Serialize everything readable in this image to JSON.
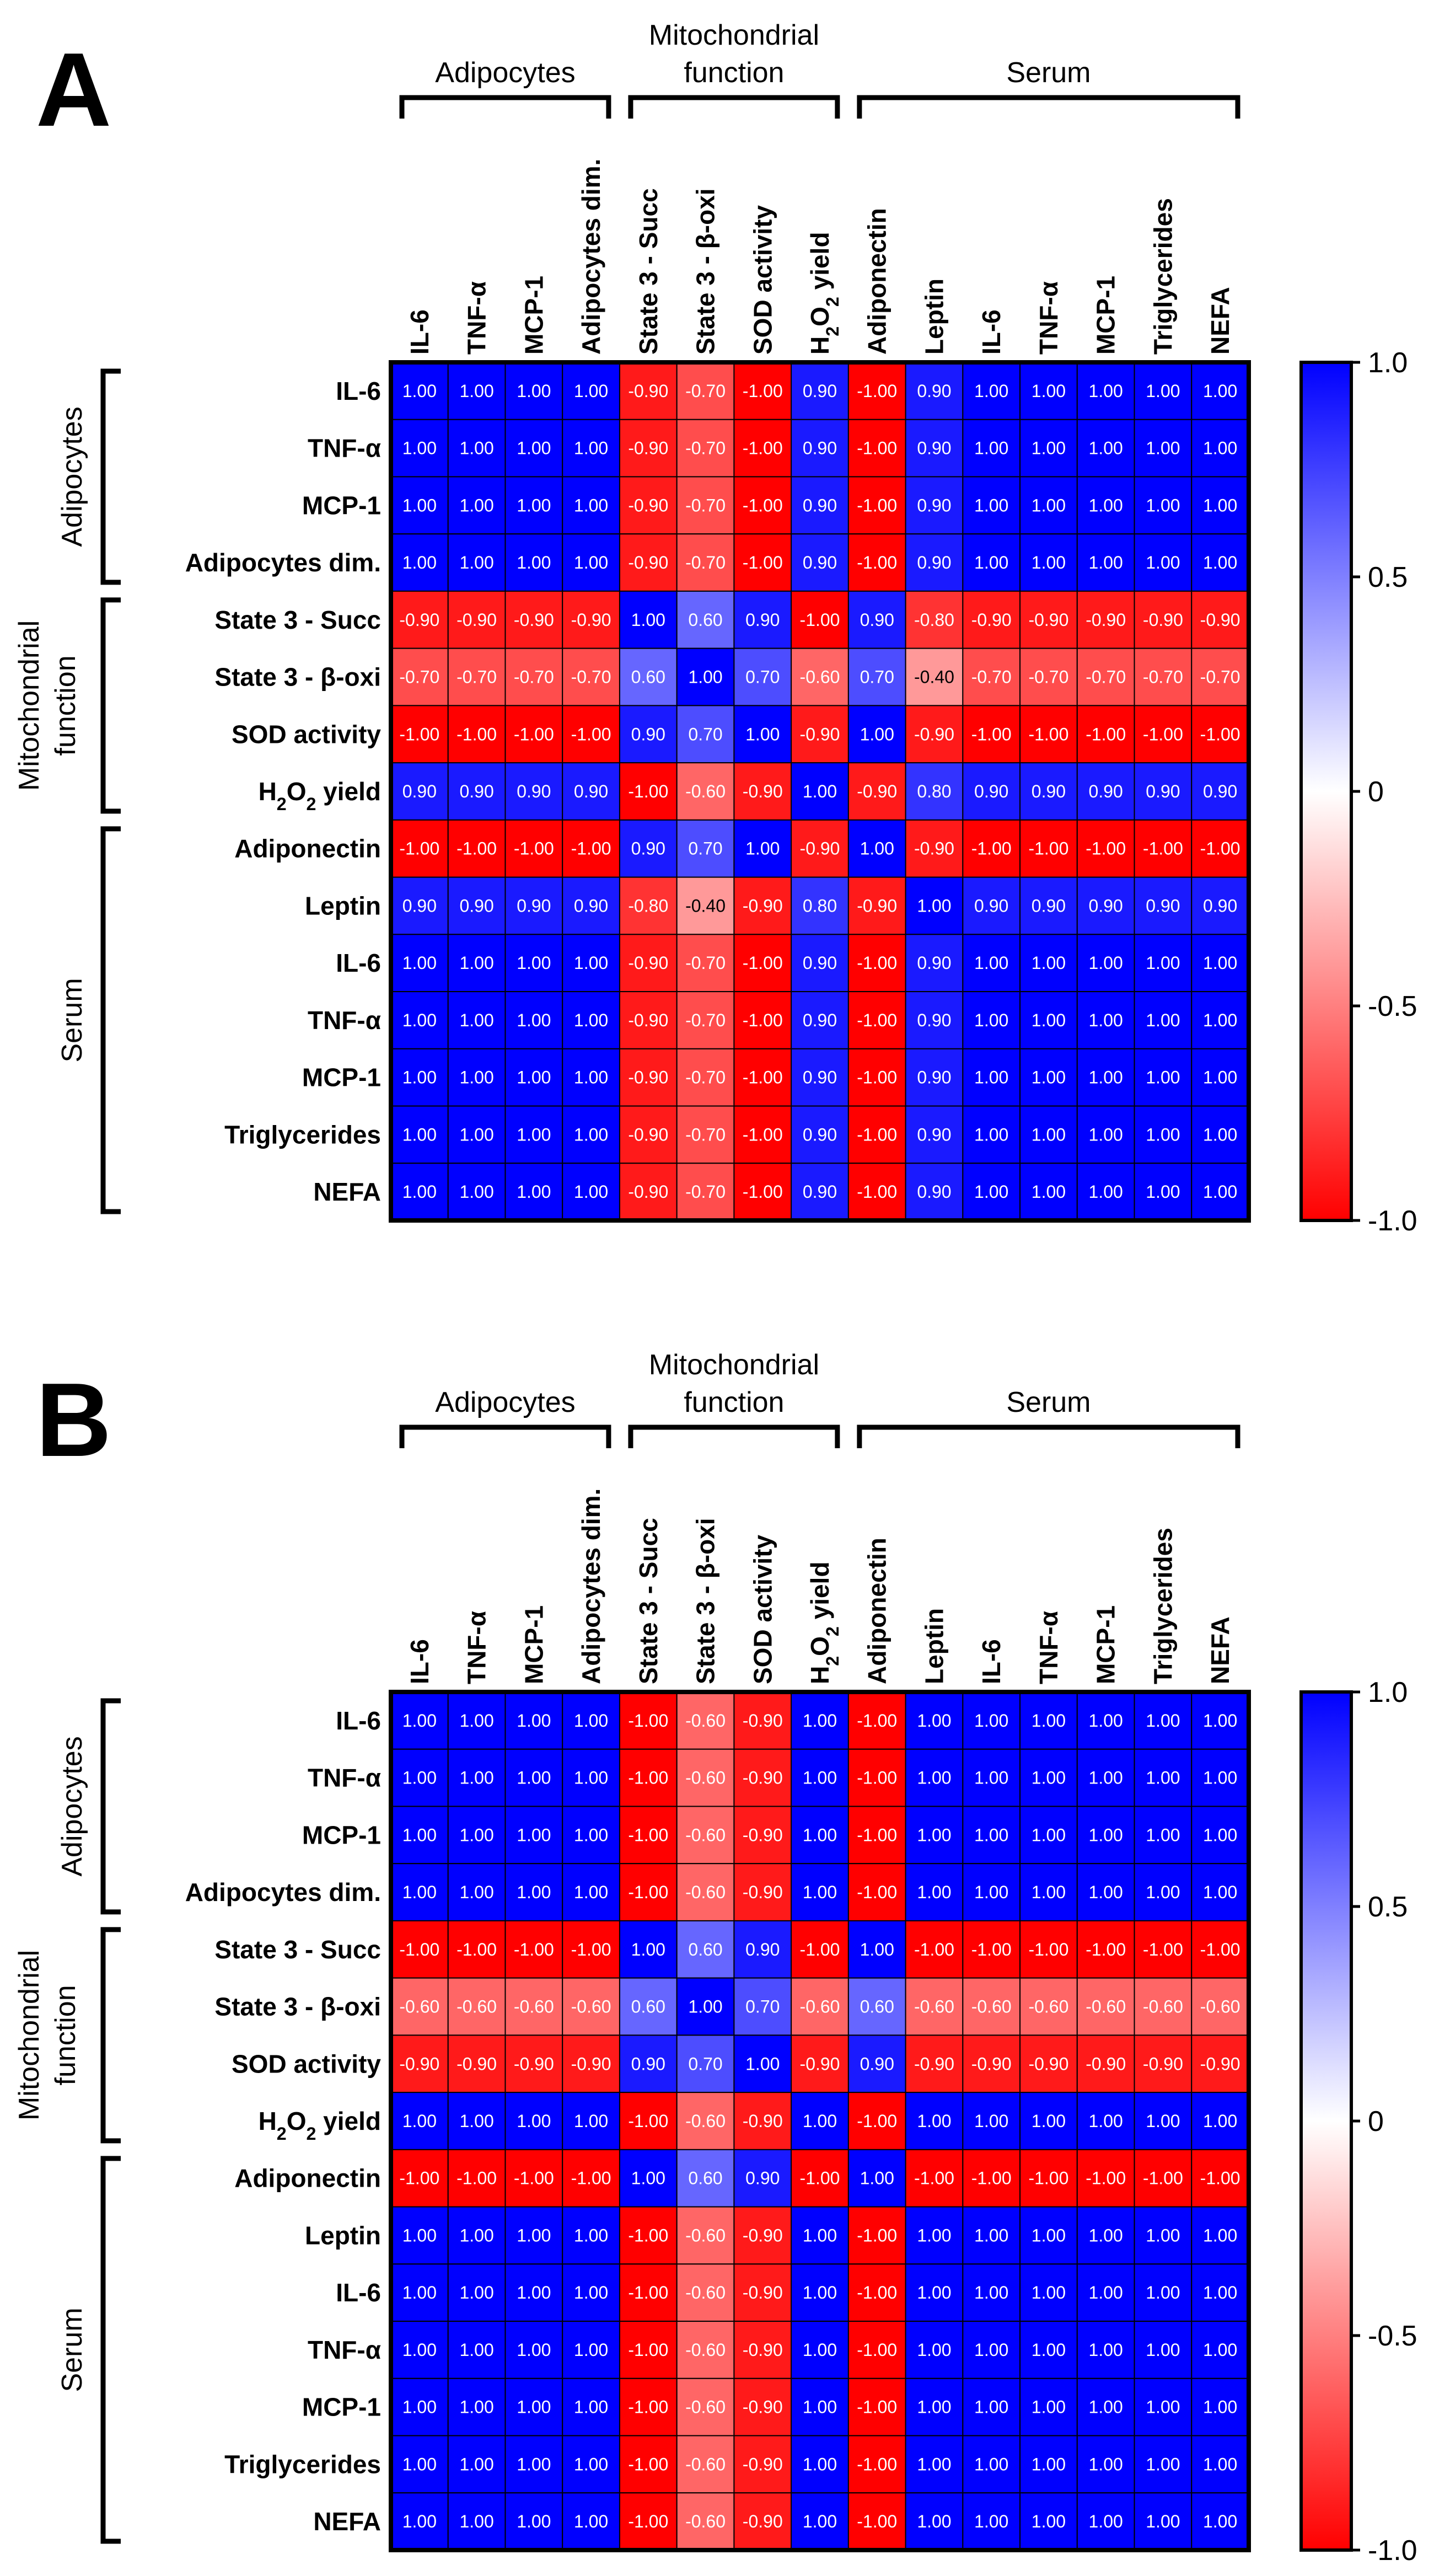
{
  "chart_data": [
    {
      "type": "heatmap",
      "panel": "A",
      "col_groups": [
        {
          "label_lines": [
            "Adipocytes"
          ],
          "start": 0,
          "end": 3
        },
        {
          "label_lines": [
            "Mitochondrial",
            "function"
          ],
          "start": 4,
          "end": 7
        },
        {
          "label_lines": [
            "Serum"
          ],
          "start": 8,
          "end": 14
        }
      ],
      "row_groups": [
        {
          "label_lines": [
            "Adipocytes"
          ],
          "start": 0,
          "end": 3
        },
        {
          "label_lines": [
            "Mitochondrial",
            "function"
          ],
          "start": 4,
          "end": 7
        },
        {
          "label_lines": [
            "Serum"
          ],
          "start": 8,
          "end": 14
        }
      ],
      "x_labels": [
        "IL-6",
        "TNF-α",
        "MCP-1",
        "Adipocytes dim.",
        "State 3 - Succ",
        "State 3 - β-oxi",
        "SOD activity",
        "H2O2 yield",
        "Adiponectin",
        "Leptin",
        "IL-6",
        "TNF-α",
        "MCP-1",
        "Triglycerides",
        "NEFA"
      ],
      "y_labels": [
        "IL-6",
        "TNF-α",
        "MCP-1",
        "Adipocytes dim.",
        "State 3 - Succ",
        "State 3 - β-oxi",
        "SOD activity",
        "H2O2 yield",
        "Adiponectin",
        "Leptin",
        "IL-6",
        "TNF-α",
        "MCP-1",
        "Triglycerides",
        "NEFA"
      ],
      "values": [
        [
          1.0,
          1.0,
          1.0,
          1.0,
          -0.9,
          -0.7,
          -1.0,
          0.9,
          -1.0,
          0.9,
          1.0,
          1.0,
          1.0,
          1.0,
          1.0
        ],
        [
          1.0,
          1.0,
          1.0,
          1.0,
          -0.9,
          -0.7,
          -1.0,
          0.9,
          -1.0,
          0.9,
          1.0,
          1.0,
          1.0,
          1.0,
          1.0
        ],
        [
          1.0,
          1.0,
          1.0,
          1.0,
          -0.9,
          -0.7,
          -1.0,
          0.9,
          -1.0,
          0.9,
          1.0,
          1.0,
          1.0,
          1.0,
          1.0
        ],
        [
          1.0,
          1.0,
          1.0,
          1.0,
          -0.9,
          -0.7,
          -1.0,
          0.9,
          -1.0,
          0.9,
          1.0,
          1.0,
          1.0,
          1.0,
          1.0
        ],
        [
          -0.9,
          -0.9,
          -0.9,
          -0.9,
          1.0,
          0.6,
          0.9,
          -1.0,
          0.9,
          -0.8,
          -0.9,
          -0.9,
          -0.9,
          -0.9,
          -0.9
        ],
        [
          -0.7,
          -0.7,
          -0.7,
          -0.7,
          0.6,
          1.0,
          0.7,
          -0.6,
          0.7,
          -0.4,
          -0.7,
          -0.7,
          -0.7,
          -0.7,
          -0.7
        ],
        [
          -1.0,
          -1.0,
          -1.0,
          -1.0,
          0.9,
          0.7,
          1.0,
          -0.9,
          1.0,
          -0.9,
          -1.0,
          -1.0,
          -1.0,
          -1.0,
          -1.0
        ],
        [
          0.9,
          0.9,
          0.9,
          0.9,
          -1.0,
          -0.6,
          -0.9,
          1.0,
          -0.9,
          0.8,
          0.9,
          0.9,
          0.9,
          0.9,
          0.9
        ],
        [
          -1.0,
          -1.0,
          -1.0,
          -1.0,
          0.9,
          0.7,
          1.0,
          -0.9,
          1.0,
          -0.9,
          -1.0,
          -1.0,
          -1.0,
          -1.0,
          -1.0
        ],
        [
          0.9,
          0.9,
          0.9,
          0.9,
          -0.8,
          -0.4,
          -0.9,
          0.8,
          -0.9,
          1.0,
          0.9,
          0.9,
          0.9,
          0.9,
          0.9
        ],
        [
          1.0,
          1.0,
          1.0,
          1.0,
          -0.9,
          -0.7,
          -1.0,
          0.9,
          -1.0,
          0.9,
          1.0,
          1.0,
          1.0,
          1.0,
          1.0
        ],
        [
          1.0,
          1.0,
          1.0,
          1.0,
          -0.9,
          -0.7,
          -1.0,
          0.9,
          -1.0,
          0.9,
          1.0,
          1.0,
          1.0,
          1.0,
          1.0
        ],
        [
          1.0,
          1.0,
          1.0,
          1.0,
          -0.9,
          -0.7,
          -1.0,
          0.9,
          -1.0,
          0.9,
          1.0,
          1.0,
          1.0,
          1.0,
          1.0
        ],
        [
          1.0,
          1.0,
          1.0,
          1.0,
          -0.9,
          -0.7,
          -1.0,
          0.9,
          -1.0,
          0.9,
          1.0,
          1.0,
          1.0,
          1.0,
          1.0
        ],
        [
          1.0,
          1.0,
          1.0,
          1.0,
          -0.9,
          -0.7,
          -1.0,
          0.9,
          -1.0,
          0.9,
          1.0,
          1.0,
          1.0,
          1.0,
          1.0
        ]
      ],
      "color_scale": {
        "min": -1.0,
        "max": 1.0,
        "min_color": "#ff0000",
        "mid_color": "#ffffff",
        "max_color": "#0000ff",
        "tick_labels": [
          "1.0",
          "0.5",
          "0",
          "-0.5",
          "-1.0"
        ]
      }
    },
    {
      "type": "heatmap",
      "panel": "B",
      "col_groups": [
        {
          "label_lines": [
            "Adipocytes"
          ],
          "start": 0,
          "end": 3
        },
        {
          "label_lines": [
            "Mitochondrial",
            "function"
          ],
          "start": 4,
          "end": 7
        },
        {
          "label_lines": [
            "Serum"
          ],
          "start": 8,
          "end": 14
        }
      ],
      "row_groups": [
        {
          "label_lines": [
            "Adipocytes"
          ],
          "start": 0,
          "end": 3
        },
        {
          "label_lines": [
            "Mitochondrial",
            "function"
          ],
          "start": 4,
          "end": 7
        },
        {
          "label_lines": [
            "Serum"
          ],
          "start": 8,
          "end": 14
        }
      ],
      "x_labels": [
        "IL-6",
        "TNF-α",
        "MCP-1",
        "Adipocytes dim.",
        "State 3 - Succ",
        "State 3 - β-oxi",
        "SOD activity",
        "H2O2 yield",
        "Adiponectin",
        "Leptin",
        "IL-6",
        "TNF-α",
        "MCP-1",
        "Triglycerides",
        "NEFA"
      ],
      "y_labels": [
        "IL-6",
        "TNF-α",
        "MCP-1",
        "Adipocytes dim.",
        "State 3 - Succ",
        "State 3 - β-oxi",
        "SOD activity",
        "H2O2 yield",
        "Adiponectin",
        "Leptin",
        "IL-6",
        "TNF-α",
        "MCP-1",
        "Triglycerides",
        "NEFA"
      ],
      "values": [
        [
          1.0,
          1.0,
          1.0,
          1.0,
          -1.0,
          -0.6,
          -0.9,
          1.0,
          -1.0,
          1.0,
          1.0,
          1.0,
          1.0,
          1.0,
          1.0
        ],
        [
          1.0,
          1.0,
          1.0,
          1.0,
          -1.0,
          -0.6,
          -0.9,
          1.0,
          -1.0,
          1.0,
          1.0,
          1.0,
          1.0,
          1.0,
          1.0
        ],
        [
          1.0,
          1.0,
          1.0,
          1.0,
          -1.0,
          -0.6,
          -0.9,
          1.0,
          -1.0,
          1.0,
          1.0,
          1.0,
          1.0,
          1.0,
          1.0
        ],
        [
          1.0,
          1.0,
          1.0,
          1.0,
          -1.0,
          -0.6,
          -0.9,
          1.0,
          -1.0,
          1.0,
          1.0,
          1.0,
          1.0,
          1.0,
          1.0
        ],
        [
          -1.0,
          -1.0,
          -1.0,
          -1.0,
          1.0,
          0.6,
          0.9,
          -1.0,
          1.0,
          -1.0,
          -1.0,
          -1.0,
          -1.0,
          -1.0,
          -1.0
        ],
        [
          -0.6,
          -0.6,
          -0.6,
          -0.6,
          0.6,
          1.0,
          0.7,
          -0.6,
          0.6,
          -0.6,
          -0.6,
          -0.6,
          -0.6,
          -0.6,
          -0.6
        ],
        [
          -0.9,
          -0.9,
          -0.9,
          -0.9,
          0.9,
          0.7,
          1.0,
          -0.9,
          0.9,
          -0.9,
          -0.9,
          -0.9,
          -0.9,
          -0.9,
          -0.9
        ],
        [
          1.0,
          1.0,
          1.0,
          1.0,
          -1.0,
          -0.6,
          -0.9,
          1.0,
          -1.0,
          1.0,
          1.0,
          1.0,
          1.0,
          1.0,
          1.0
        ],
        [
          -1.0,
          -1.0,
          -1.0,
          -1.0,
          1.0,
          0.6,
          0.9,
          -1.0,
          1.0,
          -1.0,
          -1.0,
          -1.0,
          -1.0,
          -1.0,
          -1.0
        ],
        [
          1.0,
          1.0,
          1.0,
          1.0,
          -1.0,
          -0.6,
          -0.9,
          1.0,
          -1.0,
          1.0,
          1.0,
          1.0,
          1.0,
          1.0,
          1.0
        ],
        [
          1.0,
          1.0,
          1.0,
          1.0,
          -1.0,
          -0.6,
          -0.9,
          1.0,
          -1.0,
          1.0,
          1.0,
          1.0,
          1.0,
          1.0,
          1.0
        ],
        [
          1.0,
          1.0,
          1.0,
          1.0,
          -1.0,
          -0.6,
          -0.9,
          1.0,
          -1.0,
          1.0,
          1.0,
          1.0,
          1.0,
          1.0,
          1.0
        ],
        [
          1.0,
          1.0,
          1.0,
          1.0,
          -1.0,
          -0.6,
          -0.9,
          1.0,
          -1.0,
          1.0,
          1.0,
          1.0,
          1.0,
          1.0,
          1.0
        ],
        [
          1.0,
          1.0,
          1.0,
          1.0,
          -1.0,
          -0.6,
          -0.9,
          1.0,
          -1.0,
          1.0,
          1.0,
          1.0,
          1.0,
          1.0,
          1.0
        ],
        [
          1.0,
          1.0,
          1.0,
          1.0,
          -1.0,
          -0.6,
          -0.9,
          1.0,
          -1.0,
          1.0,
          1.0,
          1.0,
          1.0,
          1.0,
          1.0
        ]
      ],
      "color_scale": {
        "min": -1.0,
        "max": 1.0,
        "min_color": "#ff0000",
        "mid_color": "#ffffff",
        "max_color": "#0000ff",
        "tick_labels": [
          "1.0",
          "0.5",
          "0",
          "-0.5",
          "-1.0"
        ]
      }
    }
  ]
}
